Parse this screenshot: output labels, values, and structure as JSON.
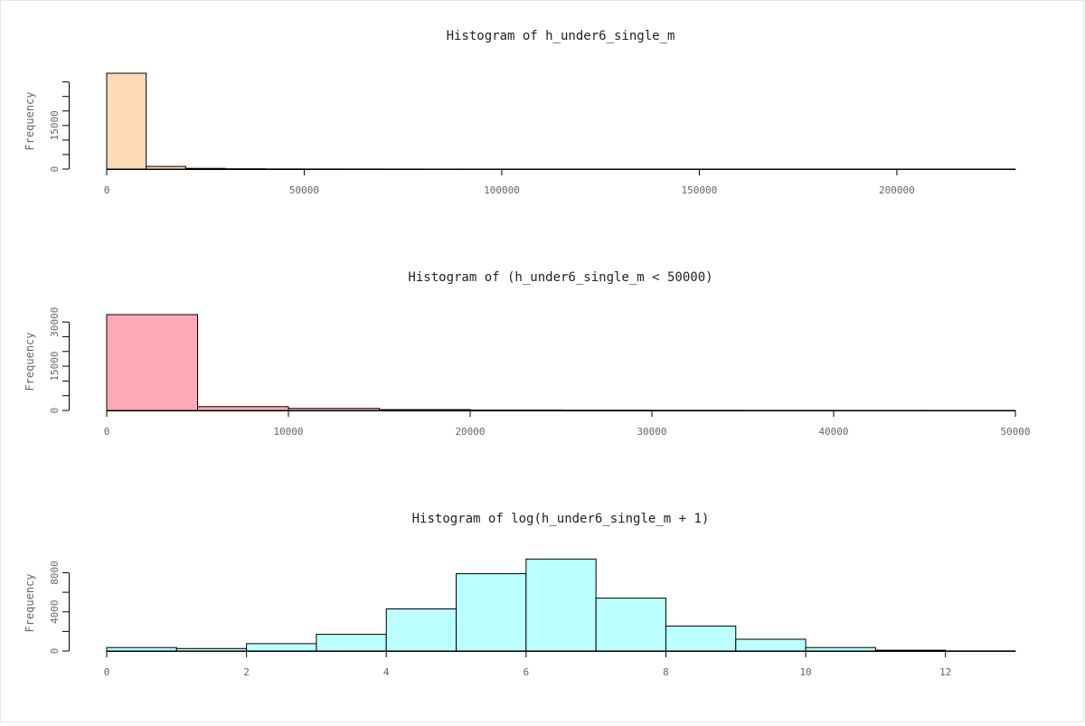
{
  "chart_data": [
    {
      "type": "bar",
      "title": "Histogram of h_under6_single_m",
      "xlabel": "",
      "ylabel": "Frequency",
      "color": "#ffdab9",
      "xlim": [
        0,
        230000
      ],
      "ylim": [
        0,
        33000
      ],
      "xticks": [
        0,
        50000,
        100000,
        150000,
        200000
      ],
      "yticks": [
        0,
        5000,
        10000,
        15000,
        20000,
        25000,
        30000
      ],
      "ytick_labels": [
        "0",
        "",
        "",
        "15000",
        "",
        "",
        ""
      ],
      "bins": [
        {
          "x0": 0,
          "x1": 10000,
          "y": 33000
        },
        {
          "x0": 10000,
          "x1": 20000,
          "y": 900
        },
        {
          "x0": 20000,
          "x1": 30000,
          "y": 250
        },
        {
          "x0": 30000,
          "x1": 40000,
          "y": 100
        },
        {
          "x0": 40000,
          "x1": 50000,
          "y": 50
        },
        {
          "x0": 50000,
          "x1": 60000,
          "y": 30
        },
        {
          "x0": 60000,
          "x1": 70000,
          "y": 20
        },
        {
          "x0": 70000,
          "x1": 80000,
          "y": 10
        },
        {
          "x0": 80000,
          "x1": 90000,
          "y": 5
        },
        {
          "x0": 90000,
          "x1": 100000,
          "y": 5
        },
        {
          "x0": 100000,
          "x1": 110000,
          "y": 3
        },
        {
          "x0": 110000,
          "x1": 120000,
          "y": 2
        },
        {
          "x0": 120000,
          "x1": 130000,
          "y": 2
        },
        {
          "x0": 130000,
          "x1": 140000,
          "y": 1
        },
        {
          "x0": 140000,
          "x1": 150000,
          "y": 1
        },
        {
          "x0": 150000,
          "x1": 160000,
          "y": 1
        },
        {
          "x0": 160000,
          "x1": 170000,
          "y": 1
        },
        {
          "x0": 170000,
          "x1": 180000,
          "y": 1
        },
        {
          "x0": 180000,
          "x1": 190000,
          "y": 1
        },
        {
          "x0": 190000,
          "x1": 200000,
          "y": 1
        },
        {
          "x0": 200000,
          "x1": 210000,
          "y": 1
        },
        {
          "x0": 210000,
          "x1": 220000,
          "y": 1
        },
        {
          "x0": 220000,
          "x1": 230000,
          "y": 1
        }
      ]
    },
    {
      "type": "bar",
      "title": "Histogram of (h_under6_single_m < 50000)",
      "xlabel": "",
      "ylabel": "Frequency",
      "color": "#ffaab5",
      "xlim": [
        0,
        50000
      ],
      "ylim": [
        0,
        32500
      ],
      "xticks": [
        0,
        10000,
        20000,
        30000,
        40000,
        50000
      ],
      "yticks": [
        0,
        5000,
        10000,
        15000,
        20000,
        25000,
        30000
      ],
      "ytick_labels": [
        "0",
        "",
        "",
        "15000",
        "",
        "",
        "30000"
      ],
      "bins": [
        {
          "x0": 0,
          "x1": 5000,
          "y": 32500
        },
        {
          "x0": 5000,
          "x1": 10000,
          "y": 1300
        },
        {
          "x0": 10000,
          "x1": 15000,
          "y": 700
        },
        {
          "x0": 15000,
          "x1": 20000,
          "y": 300
        },
        {
          "x0": 20000,
          "x1": 25000,
          "y": 150
        },
        {
          "x0": 25000,
          "x1": 30000,
          "y": 80
        },
        {
          "x0": 30000,
          "x1": 35000,
          "y": 50
        },
        {
          "x0": 35000,
          "x1": 40000,
          "y": 30
        },
        {
          "x0": 40000,
          "x1": 45000,
          "y": 20
        },
        {
          "x0": 45000,
          "x1": 50000,
          "y": 15
        }
      ]
    },
    {
      "type": "bar",
      "title": "Histogram of log(h_under6_single_m + 1)",
      "xlabel": "",
      "ylabel": "Frequency",
      "color": "#bbffff",
      "xlim": [
        0,
        13
      ],
      "ylim": [
        0,
        9800
      ],
      "xticks": [
        0,
        2,
        4,
        6,
        8,
        10,
        12
      ],
      "yticks": [
        0,
        2000,
        4000,
        6000,
        8000
      ],
      "ytick_labels": [
        "0",
        "",
        "4000",
        "",
        "8000"
      ],
      "bins": [
        {
          "x0": 0,
          "x1": 1,
          "y": 350
        },
        {
          "x0": 1,
          "x1": 2,
          "y": 250
        },
        {
          "x0": 2,
          "x1": 3,
          "y": 750
        },
        {
          "x0": 3,
          "x1": 4,
          "y": 1700
        },
        {
          "x0": 4,
          "x1": 5,
          "y": 4300
        },
        {
          "x0": 5,
          "x1": 6,
          "y": 7900
        },
        {
          "x0": 6,
          "x1": 7,
          "y": 9400
        },
        {
          "x0": 7,
          "x1": 8,
          "y": 5400
        },
        {
          "x0": 8,
          "x1": 9,
          "y": 2550
        },
        {
          "x0": 9,
          "x1": 10,
          "y": 1200
        },
        {
          "x0": 10,
          "x1": 11,
          "y": 350
        },
        {
          "x0": 11,
          "x1": 12,
          "y": 80
        },
        {
          "x0": 12,
          "x1": 13,
          "y": 10
        }
      ]
    }
  ]
}
